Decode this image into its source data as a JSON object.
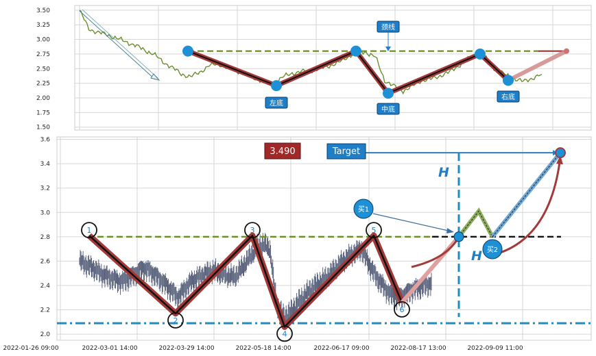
{
  "chart_data": [
    {
      "type": "line",
      "panel": "top",
      "ylim": [
        1.45,
        3.58
      ],
      "yticks": [
        "3.50",
        "3.25",
        "3.00",
        "2.75",
        "2.50",
        "2.25",
        "2.00",
        "1.75",
        "1.50"
      ],
      "ytick_values": [
        3.5,
        3.25,
        3.0,
        2.75,
        2.5,
        2.25,
        2.0,
        1.75,
        1.5
      ],
      "grid": true,
      "price_series": [
        3.5,
        3.18,
        3.12,
        3.08,
        3.02,
        2.96,
        2.9,
        2.82,
        2.75,
        2.62,
        2.52,
        2.41,
        2.36,
        2.44,
        2.55,
        2.58,
        2.52,
        2.46,
        2.4,
        2.33,
        2.28,
        2.24,
        2.36,
        2.42,
        2.45,
        2.46,
        2.5,
        2.55,
        2.6,
        2.7,
        2.79,
        2.78,
        2.7,
        2.3,
        2.2,
        2.12,
        2.2,
        2.3,
        2.32,
        2.38,
        2.44,
        2.55,
        2.66,
        2.74,
        2.68,
        2.48,
        2.4,
        2.33,
        2.28,
        2.34,
        2.4
      ],
      "pattern_points": {
        "names": [
          "left_top",
          "left_bottom",
          "middle_top",
          "middle_bottom",
          "right_top",
          "right_bottom",
          "projection"
        ],
        "y": [
          2.8,
          2.21,
          2.8,
          2.08,
          2.75,
          2.3,
          2.8
        ]
      },
      "neckline": 2.8,
      "annotations": [
        "颈线",
        "左底",
        "中底",
        "右底"
      ]
    },
    {
      "type": "line",
      "panel": "bottom",
      "ylim": [
        1.95,
        3.62
      ],
      "yticks": [
        "3.6",
        "3.4",
        "3.2",
        "3.0",
        "2.8",
        "2.6",
        "2.4",
        "2.2",
        "2.0"
      ],
      "ytick_values": [
        3.6,
        3.4,
        3.2,
        3.0,
        2.8,
        2.6,
        2.4,
        2.2,
        2.0
      ],
      "xticks": [
        "2022-01-26 09:00",
        "2022-03-01 14:00",
        "2022-03-29 14:00",
        "2022-05-18 14:00",
        "2022-06-17 09:00",
        "2022-08-17 13:00",
        "2022-09-09 11:00"
      ],
      "grid": true,
      "price_series": [
        2.6,
        2.57,
        2.54,
        2.5,
        2.47,
        2.45,
        2.43,
        2.46,
        2.5,
        2.54,
        2.52,
        2.47,
        2.42,
        2.36,
        2.3,
        2.38,
        2.44,
        2.47,
        2.5,
        2.52,
        2.5,
        2.48,
        2.47,
        2.54,
        2.62,
        2.7,
        2.74,
        2.7,
        2.22,
        2.14,
        2.18,
        2.26,
        2.32,
        2.38,
        2.42,
        2.46,
        2.52,
        2.58,
        2.63,
        2.67,
        2.7,
        2.58,
        2.48,
        2.4,
        2.33,
        2.3,
        2.32,
        2.36,
        2.38,
        2.4,
        2.42
      ],
      "pivots": {
        "labels": [
          "1",
          "2",
          "3",
          "4",
          "5",
          "6"
        ],
        "y": [
          2.81,
          2.17,
          2.81,
          2.06,
          2.81,
          2.26
        ]
      },
      "neckline": 2.8,
      "support": 2.09,
      "projection": {
        "y": [
          2.26,
          2.8,
          3.01,
          2.8,
          3.49
        ]
      },
      "entry_points": {
        "labels": [
          "买1",
          "买2"
        ],
        "y": [
          2.8,
          2.8
        ]
      },
      "target": 3.49,
      "target_label": "3.490",
      "target_text": "Target",
      "height_label": "H",
      "annotations": [
        "H",
        "H"
      ]
    }
  ],
  "colors": {
    "price": "#6a8e2f",
    "price_bottom": "#4a5470",
    "zigzag_outer": "#a33a3a",
    "zigzag_inner": "#111111",
    "neckline": "#6b8e23",
    "marker": "#1e90d6",
    "support": "#1e8ec0",
    "target_box": "#a02828",
    "label_box": "#1e7fc8",
    "projection_up": "#6ea8d6",
    "projection_mid": "#8cae5a"
  }
}
